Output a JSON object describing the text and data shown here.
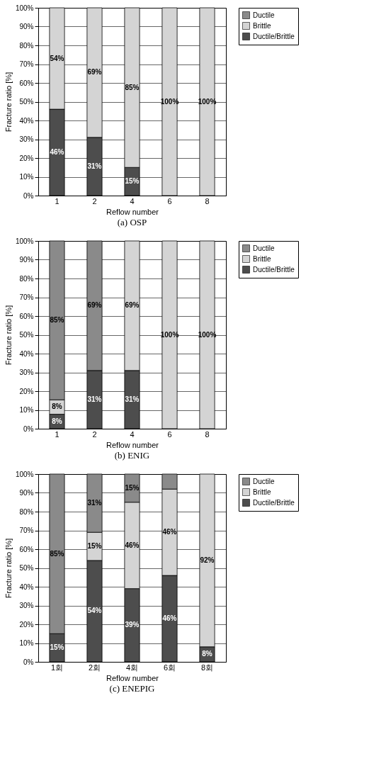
{
  "chart_data": [
    {
      "type": "bar",
      "title": "(a)  OSP",
      "xlabel": "Reflow number",
      "ylabel": "Fracture ratio [%]",
      "categories": [
        "1",
        "2",
        "4",
        "6",
        "8"
      ],
      "stacked": true,
      "ylim": [
        0,
        100
      ],
      "yticks": [
        {
          "value": 0,
          "label": "0%"
        },
        {
          "value": 10,
          "label": "10%"
        },
        {
          "value": 20,
          "label": "20%"
        },
        {
          "value": 30,
          "label": "30%"
        },
        {
          "value": 40,
          "label": "40%"
        },
        {
          "value": 50,
          "label": "50%"
        },
        {
          "value": 60,
          "label": "60%"
        },
        {
          "value": 70,
          "label": "70%"
        },
        {
          "value": 80,
          "label": "80%"
        },
        {
          "value": 90,
          "label": "90%"
        },
        {
          "value": 100,
          "label": "100%"
        }
      ],
      "grid": "y",
      "legend": "right",
      "series": [
        {
          "name": "Ductile/Brittle",
          "color": "#4d4d4d",
          "values": [
            46,
            31,
            15,
            0,
            0
          ],
          "value_labels": [
            "46%",
            "31%",
            "15%",
            null,
            null
          ]
        },
        {
          "name": "Brittle",
          "color": "#d4d4d4",
          "values": [
            54,
            69,
            85,
            100,
            100
          ],
          "value_labels": [
            "54%",
            "69%",
            "85%",
            "100%",
            "100%"
          ]
        },
        {
          "name": "Ductile",
          "color": "#8a8a8a",
          "values": [
            0,
            0,
            0,
            0,
            0
          ],
          "value_labels": [
            null,
            null,
            null,
            null,
            null
          ]
        }
      ]
    },
    {
      "type": "bar",
      "title": "(b)  ENIG",
      "xlabel": "Reflow number",
      "ylabel": "Fracture ratio [%]",
      "categories": [
        "1",
        "2",
        "4",
        "6",
        "8"
      ],
      "stacked": true,
      "ylim": [
        0,
        100
      ],
      "yticks": [
        {
          "value": 0,
          "label": "0%"
        },
        {
          "value": 10,
          "label": "10%"
        },
        {
          "value": 20,
          "label": "20%"
        },
        {
          "value": 30,
          "label": "30%"
        },
        {
          "value": 40,
          "label": "40%"
        },
        {
          "value": 50,
          "label": "50%"
        },
        {
          "value": 60,
          "label": "60%"
        },
        {
          "value": 70,
          "label": "70%"
        },
        {
          "value": 80,
          "label": "80%"
        },
        {
          "value": 90,
          "label": "90%"
        },
        {
          "value": 100,
          "label": "100%"
        }
      ],
      "grid": "y",
      "legend": "right",
      "series": [
        {
          "name": "Ductile/Brittle",
          "color": "#4d4d4d",
          "values": [
            7.7,
            31,
            31,
            0,
            0
          ],
          "value_labels": [
            "8%",
            "31%",
            "31%",
            null,
            null
          ]
        },
        {
          "name": "Brittle",
          "color": "#d4d4d4",
          "values": [
            7.7,
            0,
            69,
            100,
            100
          ],
          "value_labels": [
            "8%",
            null,
            "69%",
            "100%",
            "100%"
          ]
        },
        {
          "name": "Ductile",
          "color": "#8a8a8a",
          "values": [
            84.6,
            69,
            0,
            0,
            0
          ],
          "value_labels": [
            "85%",
            "69%",
            null,
            null,
            null
          ]
        }
      ]
    },
    {
      "type": "bar",
      "title": "(c)  ENEPIG",
      "xlabel": "Reflow number",
      "ylabel": "Fracture ratio [%]",
      "categories": [
        "1회",
        "2회",
        "4회",
        "6회",
        "8회"
      ],
      "stacked": true,
      "ylim": [
        0,
        100
      ],
      "yticks": [
        {
          "value": 0,
          "label": "0%"
        },
        {
          "value": 10,
          "label": "10%"
        },
        {
          "value": 20,
          "label": "20%"
        },
        {
          "value": 30,
          "label": "30%"
        },
        {
          "value": 40,
          "label": "40%"
        },
        {
          "value": 50,
          "label": "50%"
        },
        {
          "value": 60,
          "label": "60%"
        },
        {
          "value": 70,
          "label": "70%"
        },
        {
          "value": 80,
          "label": "80%"
        },
        {
          "value": 90,
          "label": "90%"
        },
        {
          "value": 100,
          "label": "100%"
        }
      ],
      "grid": "y",
      "legend": "right",
      "series": [
        {
          "name": "Ductile/Brittle",
          "color": "#4d4d4d",
          "values": [
            15,
            54,
            39,
            46,
            8
          ],
          "value_labels": [
            "15%",
            "54%",
            "39%",
            "46%",
            "8%"
          ]
        },
        {
          "name": "Brittle",
          "color": "#d4d4d4",
          "values": [
            0,
            15,
            46,
            46,
            92
          ],
          "value_labels": [
            null,
            "15%",
            "46%",
            "46%",
            "92%"
          ]
        },
        {
          "name": "Ductile",
          "color": "#8a8a8a",
          "values": [
            85,
            31,
            15,
            8,
            0
          ],
          "value_labels": [
            "85%",
            "31%",
            "15%",
            null,
            null
          ]
        }
      ]
    }
  ]
}
